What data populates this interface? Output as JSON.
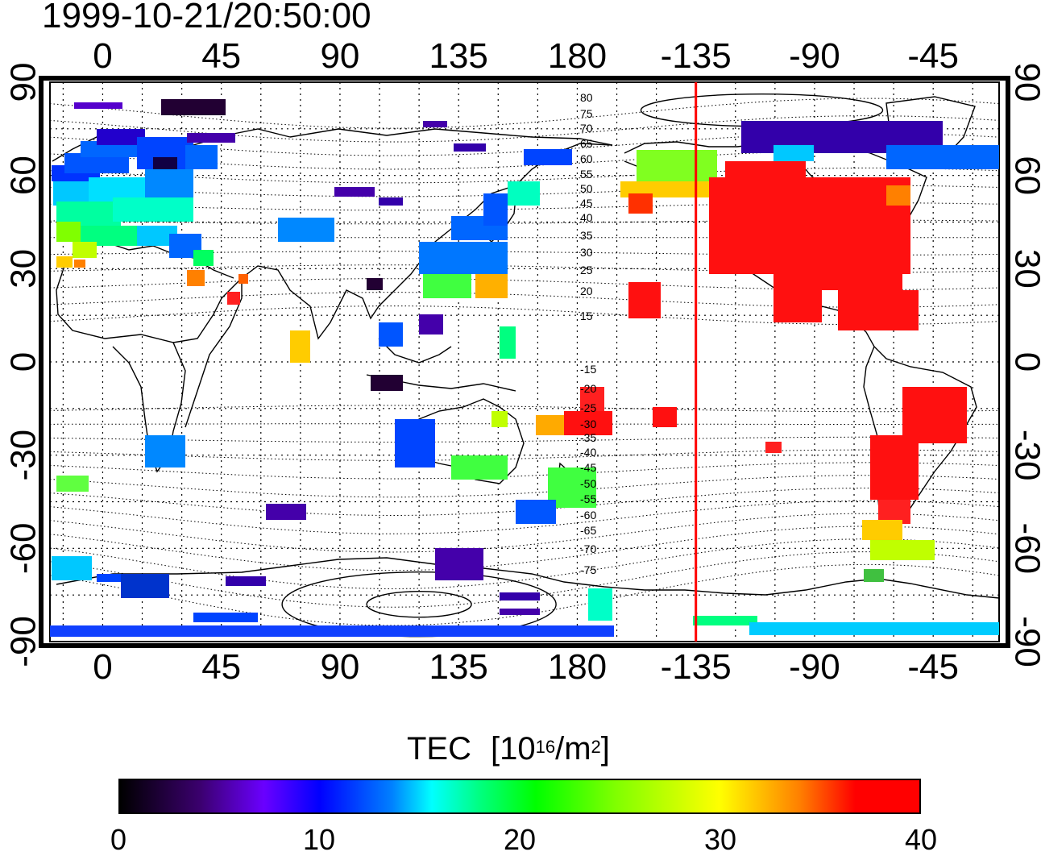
{
  "timestamp": "1999-10-21/20:50:00",
  "map": {
    "lon_ticks": [
      "0",
      "45",
      "90",
      "135",
      "180",
      "-135",
      "-90",
      "-45"
    ],
    "lat_ticks": [
      "90",
      "60",
      "30",
      "0",
      "-30",
      "-60",
      "-90"
    ],
    "contour_labels_north": [
      "80",
      "75",
      "70",
      "65",
      "60",
      "55",
      "50",
      "45",
      "40",
      "35",
      "30",
      "25",
      "20",
      "15"
    ],
    "contour_labels_south": [
      "-15",
      "-20",
      "-25",
      "-30",
      "-35",
      "-40",
      "-45",
      "-50",
      "-55",
      "-60",
      "-65",
      "-70",
      "-75"
    ],
    "terminator_color": "#ff0000",
    "terminator_lon": -135
  },
  "colorbar": {
    "title": "TEC",
    "unit_base": "[10",
    "unit_exp1": "16",
    "unit_mid": "/m",
    "unit_exp2": "2",
    "unit_end": "]",
    "min": 0,
    "max": 40,
    "ticks": [
      "0",
      "10",
      "20",
      "30",
      "40"
    ]
  }
}
